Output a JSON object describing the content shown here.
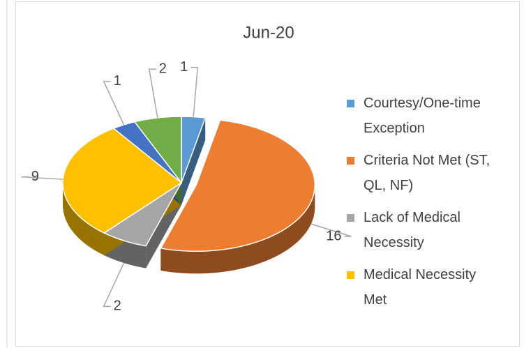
{
  "chart_data": {
    "type": "pie",
    "title": "Jun-20",
    "categories": [
      "Courtesy/One-time Exception",
      "Criteria Not Met (ST, QL, NF)",
      "Lack of Medical Necessity",
      "Medical Necessity Met",
      null,
      null
    ],
    "values": [
      1,
      16,
      2,
      9,
      1,
      2
    ],
    "colors": [
      "#5b9bd5",
      "#ed7d31",
      "#a5a5a5",
      "#ffc000",
      "#4472c4",
      "#70ad47"
    ],
    "legend": "right"
  }
}
